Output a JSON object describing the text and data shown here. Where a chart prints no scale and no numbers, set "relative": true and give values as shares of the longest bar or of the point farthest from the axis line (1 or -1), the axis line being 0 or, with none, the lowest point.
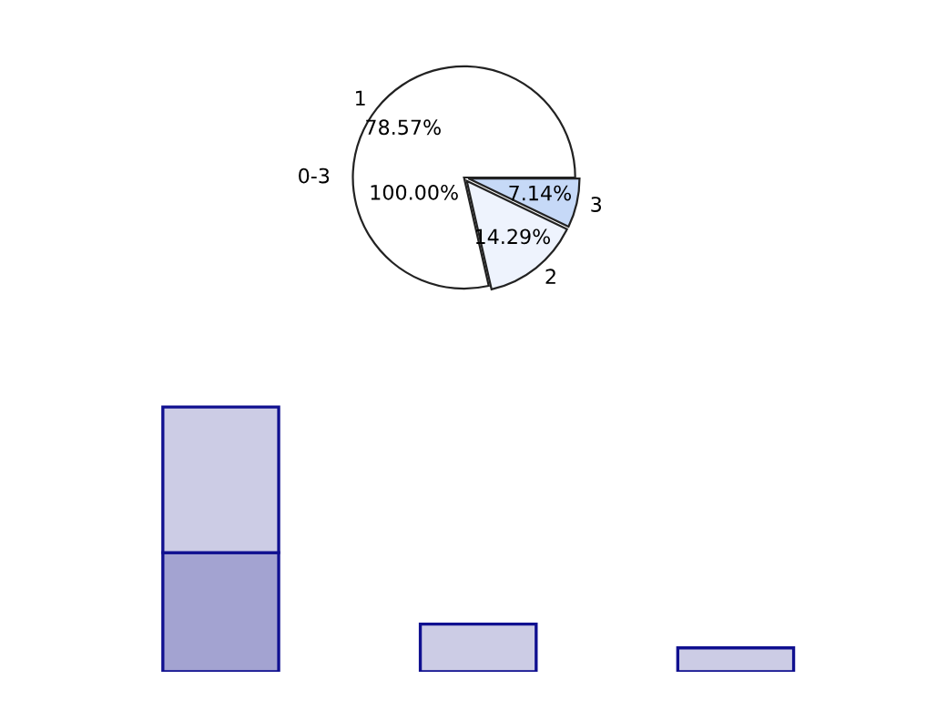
{
  "chart_data": [
    {
      "type": "pie",
      "categories": [
        "1",
        "2",
        "3"
      ],
      "values": [
        78.57,
        14.29,
        7.14
      ],
      "colors": [
        "#ffffff",
        "#eef3fd",
        "#c6d9f7"
      ],
      "value_labels": [
        "78.57%",
        "14.29%",
        "7.14%"
      ],
      "annotations": [
        "0-3",
        "100.00%"
      ]
    },
    {
      "type": "bar",
      "relative": true,
      "stacked": true,
      "categories": [
        null,
        null,
        null
      ],
      "series": [
        {
          "color": "#a3a3d1",
          "values": [
            0.45,
            0,
            0
          ]
        },
        {
          "color": "#ccccE5",
          "values": [
            0.55,
            0.18,
            0.09
          ]
        }
      ]
    }
  ]
}
